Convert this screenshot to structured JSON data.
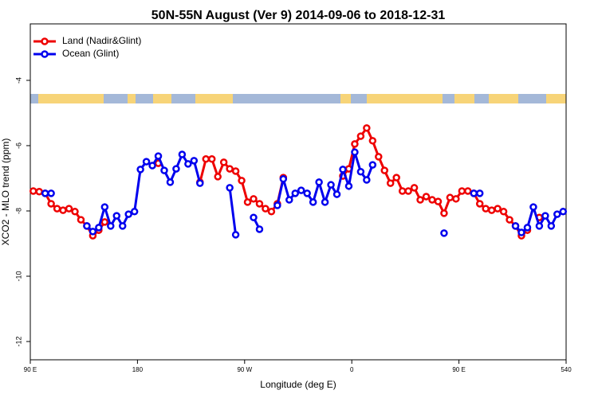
{
  "chart_data": {
    "type": "line",
    "title": "50N-55N August (Ver 9)   2014-09-06 to 2018-12-31",
    "x_label": "Longitude (deg E)",
    "y_label": "XCO2 - MLO trend (ppm)",
    "xlim": [
      90,
      540
    ],
    "ylim": [
      -12.56,
      -2.27
    ],
    "xticks": [
      {
        "value": 90,
        "label": "90 E"
      },
      180,
      {
        "value": 270,
        "label": "90 W"
      },
      {
        "value": 360,
        "label": "0"
      },
      {
        "value": 450,
        "label": "90 E"
      },
      540
    ],
    "yticks": [
      -4,
      -6,
      -8,
      -10,
      -12
    ],
    "legend": "top-left",
    "x": [
      92.5,
      97.5,
      102.5,
      107.5,
      112.5,
      117.5,
      122.5,
      127.5,
      132.5,
      137.5,
      142.5,
      147.5,
      152.5,
      157.5,
      162.5,
      167.5,
      172.5,
      177.5,
      182.5,
      187.5,
      192.5,
      197.5,
      202.5,
      207.5,
      212.5,
      217.5,
      222.5,
      227.5,
      232.5,
      237.5,
      242.5,
      247.5,
      252.5,
      257.5,
      262.5,
      267.5,
      272.5,
      277.5,
      282.5,
      287.5,
      292.5,
      297.5,
      302.5,
      307.5,
      312.5,
      317.5,
      322.5,
      327.5,
      332.5,
      337.5,
      342.5,
      347.5,
      352.5,
      357.5,
      362.5,
      367.5,
      372.5,
      377.5,
      382.5,
      387.5,
      392.5,
      397.5,
      402.5,
      407.5,
      412.5,
      417.5,
      422.5,
      427.5,
      432.5,
      437.5,
      442.5,
      447.5,
      452.5,
      457.5,
      462.5,
      467.5,
      472.5,
      477.5,
      482.5,
      487.5,
      492.5,
      497.5,
      502.5,
      507.5,
      512.5,
      517.5,
      522.5,
      527.5,
      532.5,
      537.5
    ],
    "series": [
      {
        "name": "Land (Nadir&Glint)",
        "color": "#ee0000",
        "values": [
          -7.39,
          -7.41,
          -7.46,
          -7.78,
          -7.93,
          -7.98,
          -7.93,
          -8.02,
          -8.27,
          -8.46,
          -8.76,
          -8.59,
          -8.34,
          null,
          null,
          null,
          null,
          null,
          null,
          null,
          null,
          -6.54,
          null,
          null,
          null,
          null,
          null,
          null,
          -7.12,
          -6.41,
          -6.41,
          -6.95,
          -6.51,
          -6.71,
          -6.78,
          -7.07,
          -7.73,
          -7.63,
          -7.78,
          -7.93,
          -8.02,
          -7.78,
          -6.98,
          null,
          null,
          null,
          null,
          null,
          null,
          null,
          null,
          null,
          -6.93,
          -6.71,
          -5.95,
          -5.71,
          -5.46,
          -5.85,
          -6.34,
          -6.76,
          -7.15,
          -6.98,
          -7.39,
          -7.39,
          -7.29,
          -7.66,
          -7.56,
          -7.66,
          -7.71,
          -8.07,
          -7.59,
          -7.63,
          -7.39,
          -7.39,
          -7.46,
          -7.78,
          -7.93,
          -7.98,
          -7.93,
          -8.02,
          -8.27,
          -8.46,
          -8.76,
          -8.59,
          null,
          -8.2,
          null,
          null,
          null,
          null
        ]
      },
      {
        "name": "Ocean (Glint)",
        "color": "#0000ee",
        "values": [
          null,
          null,
          -7.46,
          -7.46,
          null,
          null,
          null,
          null,
          null,
          -8.46,
          -8.63,
          -8.51,
          -7.88,
          -8.46,
          -8.15,
          -8.46,
          -8.1,
          -8.02,
          -6.73,
          -6.49,
          -6.61,
          -6.32,
          -6.76,
          -7.12,
          -6.71,
          -6.27,
          -6.56,
          -6.46,
          -7.15,
          null,
          null,
          null,
          null,
          -7.29,
          -8.73,
          null,
          null,
          -8.2,
          -8.56,
          null,
          null,
          -7.83,
          -7.02,
          -7.66,
          -7.46,
          -7.37,
          -7.46,
          -7.73,
          -7.12,
          -7.73,
          -7.2,
          -7.49,
          -6.73,
          -7.24,
          -6.2,
          -6.8,
          -7.05,
          -6.59,
          null,
          null,
          null,
          null,
          null,
          null,
          null,
          null,
          null,
          null,
          null,
          -8.68,
          null,
          null,
          null,
          null,
          -7.46,
          -7.46,
          null,
          null,
          null,
          null,
          null,
          -8.46,
          -8.66,
          -8.51,
          -7.88,
          -8.46,
          -8.15,
          -8.46,
          -8.1,
          -8.02
        ]
      }
    ]
  }
}
